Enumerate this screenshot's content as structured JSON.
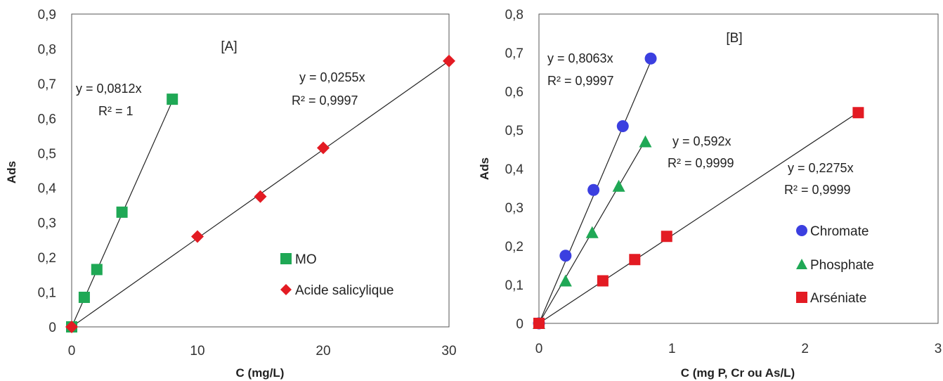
{
  "chart_data": [
    {
      "type": "scatter",
      "panel_label": "[A]",
      "xlabel": "C (mg/L)",
      "ylabel": "Ads",
      "xlim": [
        0,
        30
      ],
      "ylim": [
        0,
        0.9
      ],
      "xticks": [
        0,
        10,
        20,
        30
      ],
      "xtick_labels": [
        "0",
        "10",
        "20",
        "30"
      ],
      "yticks": [
        0,
        0.1,
        0.2,
        0.3,
        0.4,
        0.5,
        0.6,
        0.7,
        0.8,
        0.9
      ],
      "ytick_labels": [
        "0",
        "0,1",
        "0,2",
        "0,3",
        "0,4",
        "0,5",
        "0,6",
        "0,7",
        "0,8",
        "0,9"
      ],
      "grid": false,
      "legend_position": "bottom-right",
      "series": [
        {
          "name": "MO",
          "marker": "square",
          "color": "#1fa855",
          "x": [
            0,
            1,
            2,
            4,
            8
          ],
          "y": [
            0.0,
            0.085,
            0.165,
            0.33,
            0.655
          ],
          "fit": {
            "slope": 0.0812,
            "x_end": 8,
            "equation": "y = 0,0812x",
            "r2": "R² = 1"
          }
        },
        {
          "name": "Acide salicylique",
          "marker": "diamond",
          "color": "#e31b23",
          "x": [
            0,
            10,
            15,
            20,
            30
          ],
          "y": [
            0.0,
            0.26,
            0.375,
            0.515,
            0.765
          ],
          "fit": {
            "slope": 0.0255,
            "x_end": 30,
            "equation": "y = 0,0255x",
            "r2": "R² = 0,9997"
          }
        }
      ]
    },
    {
      "type": "scatter",
      "panel_label": "[B]",
      "xlabel": "C (mg P, Cr ou As/L)",
      "ylabel": "Ads",
      "xlim": [
        0,
        3
      ],
      "ylim": [
        0,
        0.8
      ],
      "xticks": [
        0,
        1,
        2,
        3
      ],
      "xtick_labels": [
        "0",
        "1",
        "2",
        "3"
      ],
      "yticks": [
        0,
        0.1,
        0.2,
        0.3,
        0.4,
        0.5,
        0.6,
        0.7,
        0.8
      ],
      "ytick_labels": [
        "0",
        "0,1",
        "0,2",
        "0,3",
        "0,4",
        "0,5",
        "0,6",
        "0,7",
        "0,8"
      ],
      "grid": false,
      "legend_position": "bottom-right",
      "series": [
        {
          "name": "Chromate",
          "marker": "circle",
          "color": "#3b3fe0",
          "x": [
            0,
            0.2,
            0.41,
            0.63,
            0.84
          ],
          "y": [
            0.0,
            0.175,
            0.345,
            0.51,
            0.685
          ],
          "fit": {
            "slope": 0.8063,
            "x_end": 0.84,
            "equation": "y = 0,8063x",
            "r2": "R² = 0,9997"
          }
        },
        {
          "name": "Phosphate",
          "marker": "triangle",
          "color": "#1fa855",
          "x": [
            0,
            0.2,
            0.4,
            0.6,
            0.8
          ],
          "y": [
            0.0,
            0.11,
            0.235,
            0.355,
            0.47
          ],
          "fit": {
            "slope": 0.592,
            "x_end": 0.8,
            "equation": "y = 0,592x",
            "r2": "R² = 0,9999"
          }
        },
        {
          "name": "Arséniate",
          "marker": "square",
          "color": "#e31b23",
          "x": [
            0,
            0.48,
            0.72,
            0.96,
            2.4
          ],
          "y": [
            0.0,
            0.11,
            0.165,
            0.225,
            0.545
          ],
          "fit": {
            "slope": 0.2275,
            "x_end": 2.4,
            "equation": "y = 0,2275x",
            "r2": "R² = 0,9999"
          }
        }
      ]
    }
  ]
}
